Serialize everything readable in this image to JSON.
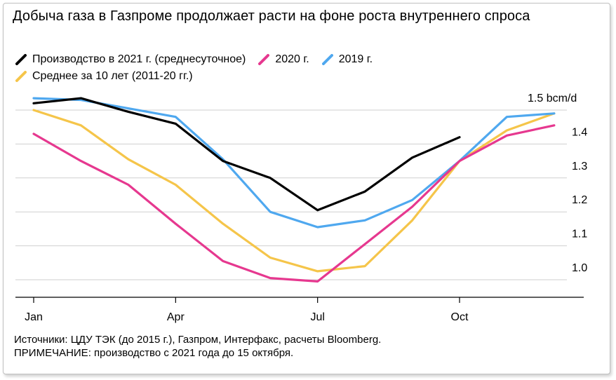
{
  "title": "Добыча газа в Газпроме продолжает расти на фоне роста внутреннего спроса",
  "legend": [
    {
      "label": "Производство в 2021 г. (среднесуточное)",
      "color": "#000000"
    },
    {
      "label": "2020 г.",
      "color": "#e6388f"
    },
    {
      "label": "2019 г.",
      "color": "#4fa8ef"
    },
    {
      "label": "Среднее за 10 лет (2011-20 гг.)",
      "color": "#f5c54a"
    }
  ],
  "footnotes": {
    "sources": "Источники: ЦДУ ТЭК (до 2015 г.), Газпром, Интерфакс, расчеты Bloomberg.",
    "note": "ПРИМЕЧАНИЕ: производство с 2021 года до 15 октября."
  },
  "chart_data": {
    "type": "line",
    "title": "Добыча газа в Газпроме продолжает расти на фоне роста внутреннего спроса",
    "x": [
      1,
      2,
      3,
      4,
      5,
      6,
      7,
      8,
      9,
      10,
      11,
      12
    ],
    "xticks": [
      {
        "x": 1,
        "label": "Jan"
      },
      {
        "x": 4,
        "label": "Apr"
      },
      {
        "x": 7,
        "label": "Jul"
      },
      {
        "x": 10,
        "label": "Oct"
      }
    ],
    "yticks": [
      {
        "y": 1.0,
        "label": "1.0"
      },
      {
        "y": 1.1,
        "label": "1.1"
      },
      {
        "y": 1.2,
        "label": "1.2"
      },
      {
        "y": 1.3,
        "label": "1.3"
      },
      {
        "y": 1.4,
        "label": "1.4"
      },
      {
        "y": 1.5,
        "label": "1.5 bcm/d"
      }
    ],
    "ylim": [
      0.95,
      1.52
    ],
    "xlim": [
      0.9,
      12.6
    ],
    "grid": true,
    "legend_position": "top-left",
    "series": [
      {
        "name": "Производство в 2021 г. (среднесуточное)",
        "color": "#000000",
        "x": [
          1,
          2,
          3,
          4,
          5,
          6,
          7,
          8,
          9,
          10
        ],
        "values": [
          1.52,
          1.535,
          1.495,
          1.46,
          1.35,
          1.3,
          1.205,
          1.26,
          1.36,
          1.42
        ]
      },
      {
        "name": "2020 г.",
        "color": "#e6388f",
        "x": [
          1,
          2,
          3,
          4,
          5,
          6,
          7,
          8,
          9,
          10,
          11,
          12
        ],
        "values": [
          1.43,
          1.35,
          1.28,
          1.165,
          1.055,
          1.005,
          0.995,
          1.105,
          1.215,
          1.35,
          1.425,
          1.455
        ]
      },
      {
        "name": "2019 г.",
        "color": "#4fa8ef",
        "x": [
          1,
          2,
          3,
          4,
          5,
          6,
          7,
          8,
          9,
          10,
          11,
          12
        ],
        "values": [
          1.535,
          1.53,
          1.505,
          1.48,
          1.355,
          1.2,
          1.155,
          1.175,
          1.235,
          1.35,
          1.48,
          1.49
        ]
      },
      {
        "name": "Среднее за 10 лет (2011-20 гг.)",
        "color": "#f5c54a",
        "x": [
          1,
          2,
          3,
          4,
          5,
          6,
          7,
          8,
          9,
          10,
          11,
          12
        ],
        "values": [
          1.5,
          1.455,
          1.355,
          1.28,
          1.165,
          1.065,
          1.025,
          1.04,
          1.175,
          1.35,
          1.44,
          1.49
        ]
      }
    ]
  }
}
